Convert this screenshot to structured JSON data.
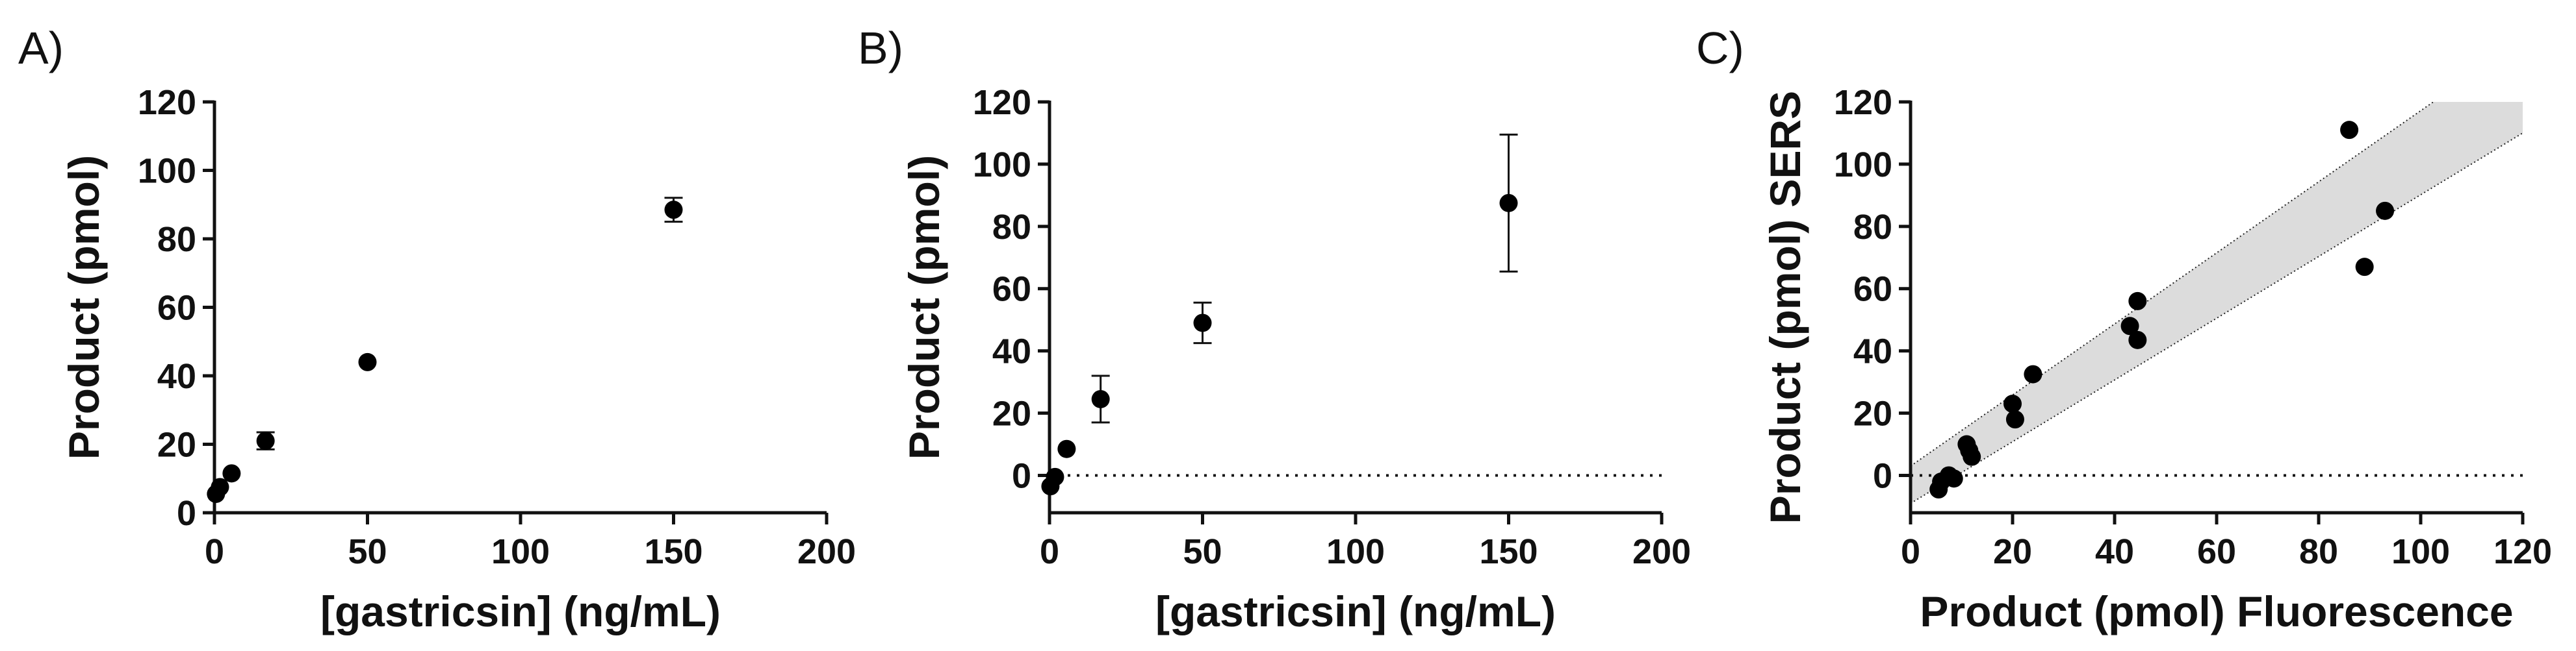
{
  "chart_data": [
    {
      "panel": "A)",
      "type": "scatter",
      "xlabel": "[gastricsin] (ng/mL)",
      "ylabel": "Product (pmol)",
      "xlim": [
        0,
        200
      ],
      "ylim": [
        0,
        120
      ],
      "xticks": [
        "0",
        "50",
        "100",
        "150",
        "200"
      ],
      "yticks": [
        "0",
        "20",
        "40",
        "60",
        "80",
        "100",
        "120"
      ],
      "zero_line": false,
      "points": [
        {
          "x": 0.5,
          "y": 5.5,
          "err": 0
        },
        {
          "x": 1.8,
          "y": 7.5,
          "err": 0
        },
        {
          "x": 5.6,
          "y": 11.5,
          "err": 0
        },
        {
          "x": 16.7,
          "y": 21,
          "err": 2.5
        },
        {
          "x": 50,
          "y": 44,
          "err": 0
        },
        {
          "x": 150,
          "y": 88.5,
          "err": 3.5
        }
      ]
    },
    {
      "panel": "B)",
      "type": "scatter",
      "xlabel": "[gastricsin] (ng/mL)",
      "ylabel": "Product (pmol)",
      "xlim": [
        0,
        200
      ],
      "ylim": [
        -12,
        120
      ],
      "xticks": [
        "0",
        "50",
        "100",
        "150",
        "200"
      ],
      "yticks": [
        "0",
        "20",
        "40",
        "60",
        "80",
        "100",
        "120"
      ],
      "zero_line": true,
      "points": [
        {
          "x": 0.3,
          "y": -3.5,
          "err": 0
        },
        {
          "x": 1.8,
          "y": -0.5,
          "err": 0
        },
        {
          "x": 5.6,
          "y": 8.5,
          "err": 0
        },
        {
          "x": 16.7,
          "y": 24.5,
          "err": 7.5
        },
        {
          "x": 50,
          "y": 49,
          "err": 6.5
        },
        {
          "x": 150,
          "y": 87.5,
          "err": 22
        }
      ]
    },
    {
      "panel": "C)",
      "type": "scatter",
      "xlabel": "Product (pmol) Fluorescence",
      "ylabel": "Product (pmol) SERS",
      "xlim": [
        0,
        120
      ],
      "ylim": [
        -12,
        120
      ],
      "xticks": [
        "0",
        "20",
        "40",
        "60",
        "80",
        "100",
        "120"
      ],
      "yticks": [
        "0",
        "20",
        "40",
        "60",
        "80",
        "100",
        "120"
      ],
      "zero_line": true,
      "confidence_band": {
        "x0": 0,
        "upper0": 3,
        "lower0": -9,
        "x1": 120,
        "upper1": 140,
        "lower1": 110,
        "color": "#dcdcdc"
      },
      "points": [
        {
          "x": 5.5,
          "y": -4.5
        },
        {
          "x": 6,
          "y": -2
        },
        {
          "x": 7.5,
          "y": 0
        },
        {
          "x": 8.5,
          "y": -1
        },
        {
          "x": 11,
          "y": 10
        },
        {
          "x": 11.5,
          "y": 8
        },
        {
          "x": 12,
          "y": 6
        },
        {
          "x": 20,
          "y": 23
        },
        {
          "x": 20.5,
          "y": 18
        },
        {
          "x": 24,
          "y": 32.5
        },
        {
          "x": 43,
          "y": 48
        },
        {
          "x": 44.5,
          "y": 56
        },
        {
          "x": 44.5,
          "y": 43.5
        },
        {
          "x": 86,
          "y": 111
        },
        {
          "x": 89,
          "y": 67
        },
        {
          "x": 93,
          "y": 85
        }
      ]
    }
  ]
}
